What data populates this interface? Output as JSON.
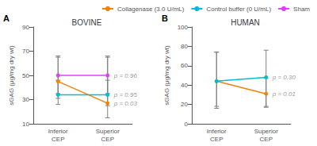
{
  "chart_data": [
    {
      "type": "line",
      "title": "BOVINE",
      "panel": "A",
      "categories": [
        "Inferior\nCEP",
        "Superior\nCEP"
      ],
      "ylabel": "sGAG (μg/mg dry wt)",
      "ylim": [
        10,
        90
      ],
      "yticks": [
        10,
        30,
        50,
        70,
        90
      ],
      "grid": false,
      "legend": "upper right",
      "marker": "circle",
      "series": [
        {
          "name": "Collagenase (3.0 U/mL)",
          "color": "#f0820a",
          "values": [
            45,
            27
          ],
          "err_low": [
            14,
            12
          ],
          "err_high": [
            20,
            38
          ]
        },
        {
          "name": "Control buffer (0 U/mL)",
          "color": "#00bcd4",
          "values": [
            34,
            34
          ],
          "err_low": [
            8,
            9
          ],
          "err_high": [
            12,
            12
          ]
        },
        {
          "name": "Sham",
          "color": "#e040fb",
          "values": [
            50,
            50
          ],
          "err_low": [
            15,
            15
          ],
          "err_high": [
            16,
            16
          ]
        }
      ],
      "annotations": [
        {
          "text": "p = 0.96",
          "y": 50
        },
        {
          "text": "p = 0.95",
          "y": 34
        },
        {
          "text": "p = 0.03",
          "y": 27
        }
      ]
    },
    {
      "type": "line",
      "title": "HUMAN",
      "panel": "B",
      "categories": [
        "Inferior\nCEP",
        "Superior\nCEP"
      ],
      "ylabel": "sGAG (μg/mg dry wt)",
      "ylim": [
        0,
        100
      ],
      "yticks": [
        0,
        20,
        40,
        60,
        80,
        100
      ],
      "grid": false,
      "marker": "circle",
      "series": [
        {
          "name": "Collagenase (3.0 U/mL)",
          "color": "#f0820a",
          "values": [
            44,
            31
          ],
          "err_low": [
            26,
            14
          ],
          "err_high": [
            30,
            16
          ]
        },
        {
          "name": "Control buffer (0 U/mL)",
          "color": "#00bcd4",
          "values": [
            44,
            48
          ],
          "err_low": [
            28,
            30
          ],
          "err_high": [
            30,
            28
          ]
        }
      ],
      "annotations": [
        {
          "text": "p = 0.30",
          "y": 48
        },
        {
          "text": "p = 0.01",
          "y": 31
        }
      ]
    }
  ]
}
